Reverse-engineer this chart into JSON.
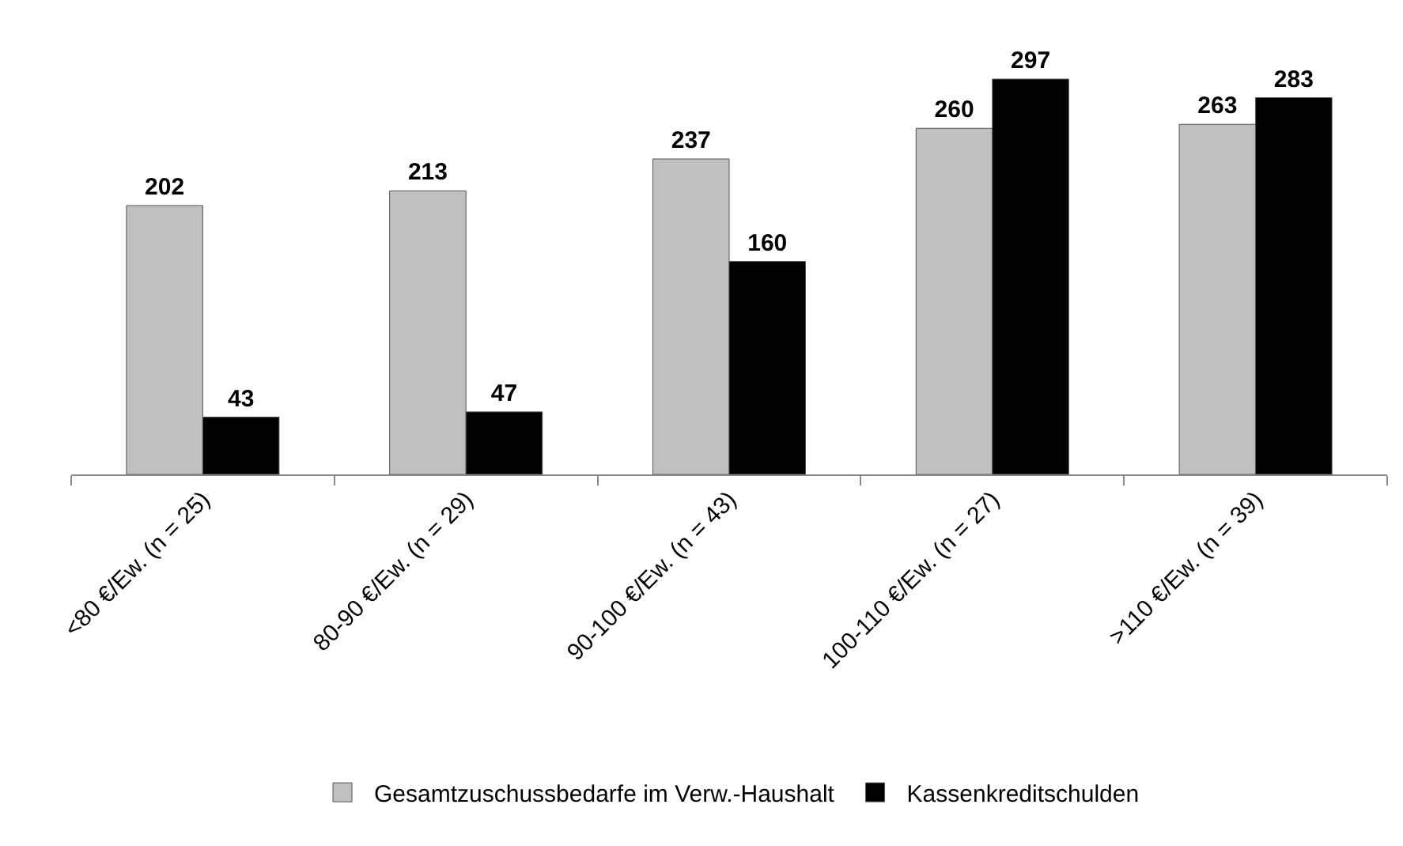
{
  "chart_data": {
    "type": "bar",
    "categories": [
      "<80 €/Ew. (n = 25)",
      "80-90 €/Ew. (n = 29)",
      "90-100 €/Ew. (n = 43)",
      "100-110 €/Ew. (n = 27)",
      ">110 €/Ew. (n = 39)"
    ],
    "series": [
      {
        "name": "Gesamtzuschussbedarfe im Verw.-Haushalt",
        "color": "#c0c0c0",
        "values": [
          202,
          213,
          237,
          260,
          263
        ]
      },
      {
        "name": "Kassenkreditschulden",
        "color": "#000000",
        "values": [
          43,
          47,
          160,
          297,
          283
        ]
      }
    ],
    "data_labels": true,
    "legend": "bottom"
  }
}
